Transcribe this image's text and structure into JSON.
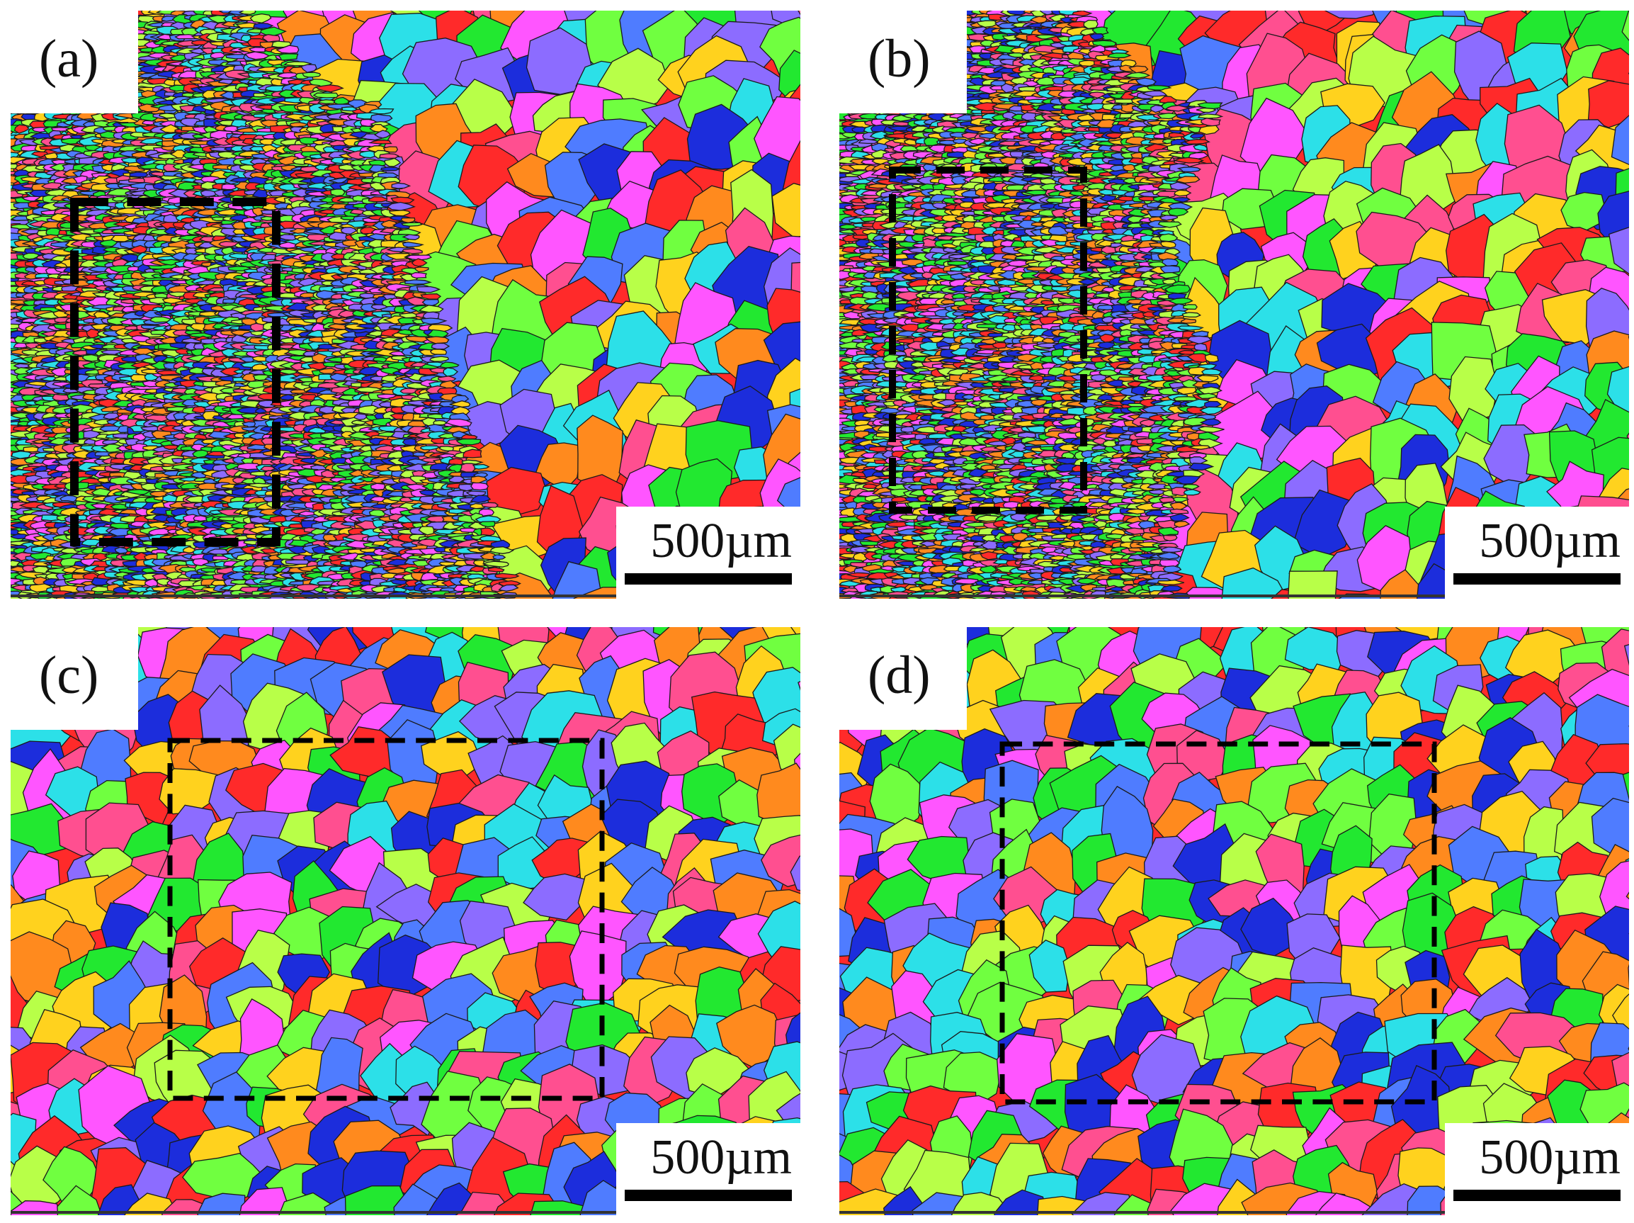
{
  "panels": [
    {
      "id": "a",
      "label": "(a)",
      "scale_text": "500µm",
      "palette": [
        "#ff2a2a",
        "#22e830",
        "#1c2ddc",
        "#8c6cff",
        "#ff55ff",
        "#2ce0e8",
        "#ffd21e",
        "#ff8a1e",
        "#ff4f90",
        "#70ff40",
        "#4f7cff",
        "#b8ff48"
      ]
    },
    {
      "id": "b",
      "label": "(b)",
      "scale_text": "500µm",
      "palette": [
        "#ff2a2a",
        "#22e830",
        "#1c2ddc",
        "#8c6cff",
        "#ff55ff",
        "#2ce0e8",
        "#ffd21e",
        "#ff8a1e",
        "#ff4f90",
        "#70ff40",
        "#4f7cff",
        "#b8ff48"
      ]
    },
    {
      "id": "c",
      "label": "(c)",
      "scale_text": "500µm",
      "palette": [
        "#ff2a2a",
        "#22e830",
        "#1c2ddc",
        "#8c6cff",
        "#ff55ff",
        "#2ce0e8",
        "#ffd21e",
        "#ff8a1e",
        "#ff4f90",
        "#70ff40",
        "#4f7cff",
        "#b8ff48"
      ]
    },
    {
      "id": "d",
      "label": "(d)",
      "scale_text": "500µm",
      "palette": [
        "#ff2a2a",
        "#22e830",
        "#1c2ddc",
        "#8c6cff",
        "#ff55ff",
        "#2ce0e8",
        "#ffd21e",
        "#ff8a1e",
        "#ff4f90",
        "#70ff40",
        "#4f7cff",
        "#b8ff48"
      ]
    }
  ]
}
